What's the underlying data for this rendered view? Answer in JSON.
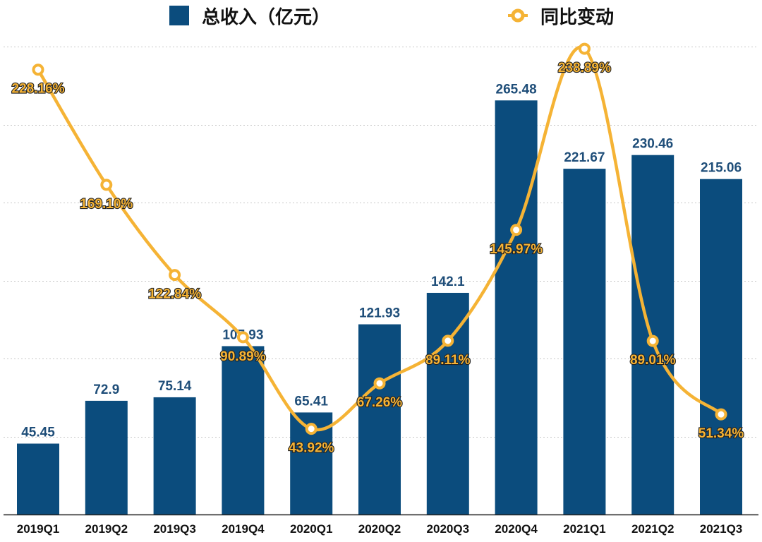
{
  "chart_data": {
    "type": "bar+line",
    "categories": [
      "2019Q1",
      "2019Q2",
      "2019Q3",
      "2019Q4",
      "2020Q1",
      "2020Q2",
      "2020Q3",
      "2020Q4",
      "2021Q1",
      "2021Q2",
      "2021Q3"
    ],
    "series": [
      {
        "name": "总收入（亿元）",
        "type": "bar",
        "color": "#0b4c7d",
        "values": [
          45.45,
          72.9,
          75.14,
          107.93,
          65.41,
          121.93,
          142.1,
          265.48,
          221.67,
          230.46,
          215.06
        ],
        "labels": [
          "45.45",
          "72.9",
          "75.14",
          "107.93",
          "65.41",
          "121.93",
          "142.1",
          "265.48",
          "221.67",
          "230.46",
          "215.06"
        ]
      },
      {
        "name": "同比变动",
        "type": "line",
        "color": "#f5b335",
        "smooth": true,
        "values": [
          228.16,
          169.1,
          122.84,
          90.89,
          43.92,
          67.26,
          89.11,
          145.97,
          238.89,
          89.01,
          51.34
        ],
        "labels": [
          "228.16%",
          "169.10%",
          "122.84%",
          "90.89%",
          "43.92%",
          "67.26%",
          "89.11%",
          "145.97%",
          "238.89%",
          "89.01%",
          "51.34%"
        ]
      }
    ],
    "ylim_bar": [
      0,
      300
    ],
    "ylim_line": [
      0,
      240
    ],
    "grid": true,
    "legend_position": "top"
  }
}
